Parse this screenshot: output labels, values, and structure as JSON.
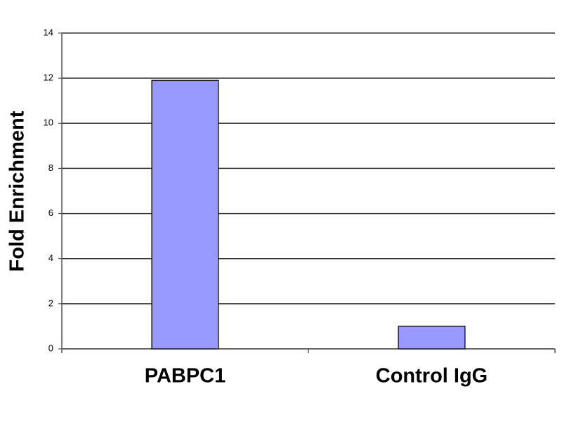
{
  "chart_data": {
    "type": "bar",
    "y_label": "Fold Enrichment",
    "categories": [
      "PABPC1",
      "Control IgG"
    ],
    "values": [
      11.9,
      1.0
    ],
    "color": "#9999ff",
    "ylim": [
      0,
      14
    ],
    "yticks": [
      0,
      2,
      4,
      6,
      8,
      10,
      12,
      14
    ],
    "grid": true
  }
}
